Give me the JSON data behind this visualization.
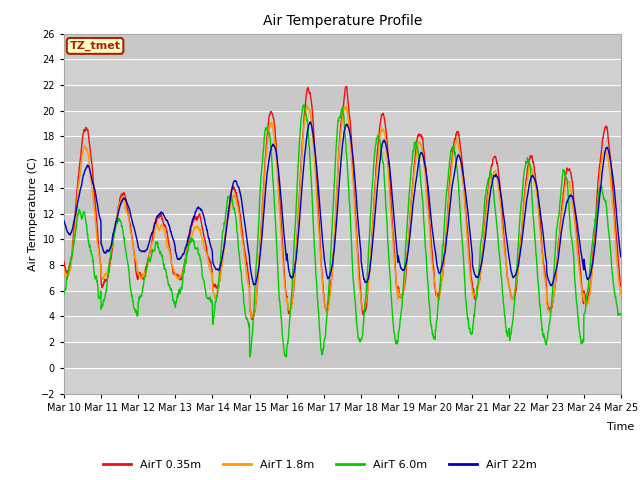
{
  "title": "Air Temperature Profile",
  "xlabel": "Time",
  "ylabel": "Air Termperature (C)",
  "ylim": [
    -2,
    26
  ],
  "background_color": "#ffffff",
  "plot_bg_color": "#d8d8d8",
  "grid_color": "#eeeeee",
  "colors": {
    "red": "#ee1111",
    "orange": "#ff9900",
    "green": "#00cc00",
    "blue": "#0000bb"
  },
  "legend_labels": [
    "AirT 0.35m",
    "AirT 1.8m",
    "AirT 6.0m",
    "AirT 22m"
  ],
  "tz_label": "TZ_tmet",
  "tz_bg": "#ffffcc",
  "tz_border": "#aa2200",
  "x_tick_labels": [
    "Mar 10",
    "Mar 11",
    "Mar 12",
    "Mar 13",
    "Mar 14",
    "Mar 15",
    "Mar 16",
    "Mar 17",
    "Mar 18",
    "Mar 19",
    "Mar 20",
    "Mar 21",
    "Mar 22",
    "Mar 23",
    "Mar 24",
    "Mar 25"
  ],
  "num_days": 15,
  "points_per_day": 144,
  "title_fontsize": 10,
  "axis_fontsize": 8,
  "tick_fontsize": 7
}
